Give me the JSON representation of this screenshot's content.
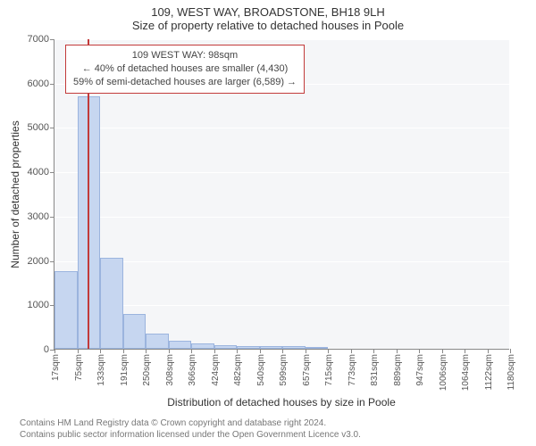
{
  "title_line1": "109, WEST WAY, BROADSTONE, BH18 9LH",
  "title_line2": "Size of property relative to detached houses in Poole",
  "xaxis_label": "Distribution of detached houses by size in Poole",
  "yaxis_label": "Number of detached properties",
  "footer_line1": "Contains HM Land Registry data © Crown copyright and database right 2024.",
  "footer_line2": "Contains public sector information licensed under the Open Government Licence v3.0.",
  "info_box": {
    "line1": "109 WEST WAY: 98sqm",
    "line2": "← 40% of detached houses are smaller (4,430)",
    "line3": "59% of semi-detached houses are larger (6,589) →"
  },
  "chart": {
    "type": "histogram",
    "background_color": "#f5f6f8",
    "grid_color": "#ffffff",
    "axis_color": "#888888",
    "bar_fill": "#c6d6f0",
    "bar_border": "#9bb4de",
    "marker_color": "#c23a3a",
    "title_fontsize": 13,
    "label_fontsize": 12,
    "tick_fontsize": 11,
    "ylim": [
      0,
      7000
    ],
    "yticks": [
      0,
      1000,
      2000,
      3000,
      4000,
      5000,
      6000,
      7000
    ],
    "xticks": [
      "17sqm",
      "75sqm",
      "133sqm",
      "191sqm",
      "250sqm",
      "308sqm",
      "366sqm",
      "424sqm",
      "482sqm",
      "540sqm",
      "599sqm",
      "657sqm",
      "715sqm",
      "773sqm",
      "831sqm",
      "889sqm",
      "947sqm",
      "1006sqm",
      "1064sqm",
      "1122sqm",
      "1180sqm"
    ],
    "bars": [
      1750,
      5700,
      2050,
      790,
      350,
      190,
      120,
      85,
      70,
      60,
      55,
      50,
      0,
      0,
      0,
      0,
      0,
      0,
      0,
      0
    ],
    "marker_x_bin": 1.45,
    "n_bins": 20
  }
}
